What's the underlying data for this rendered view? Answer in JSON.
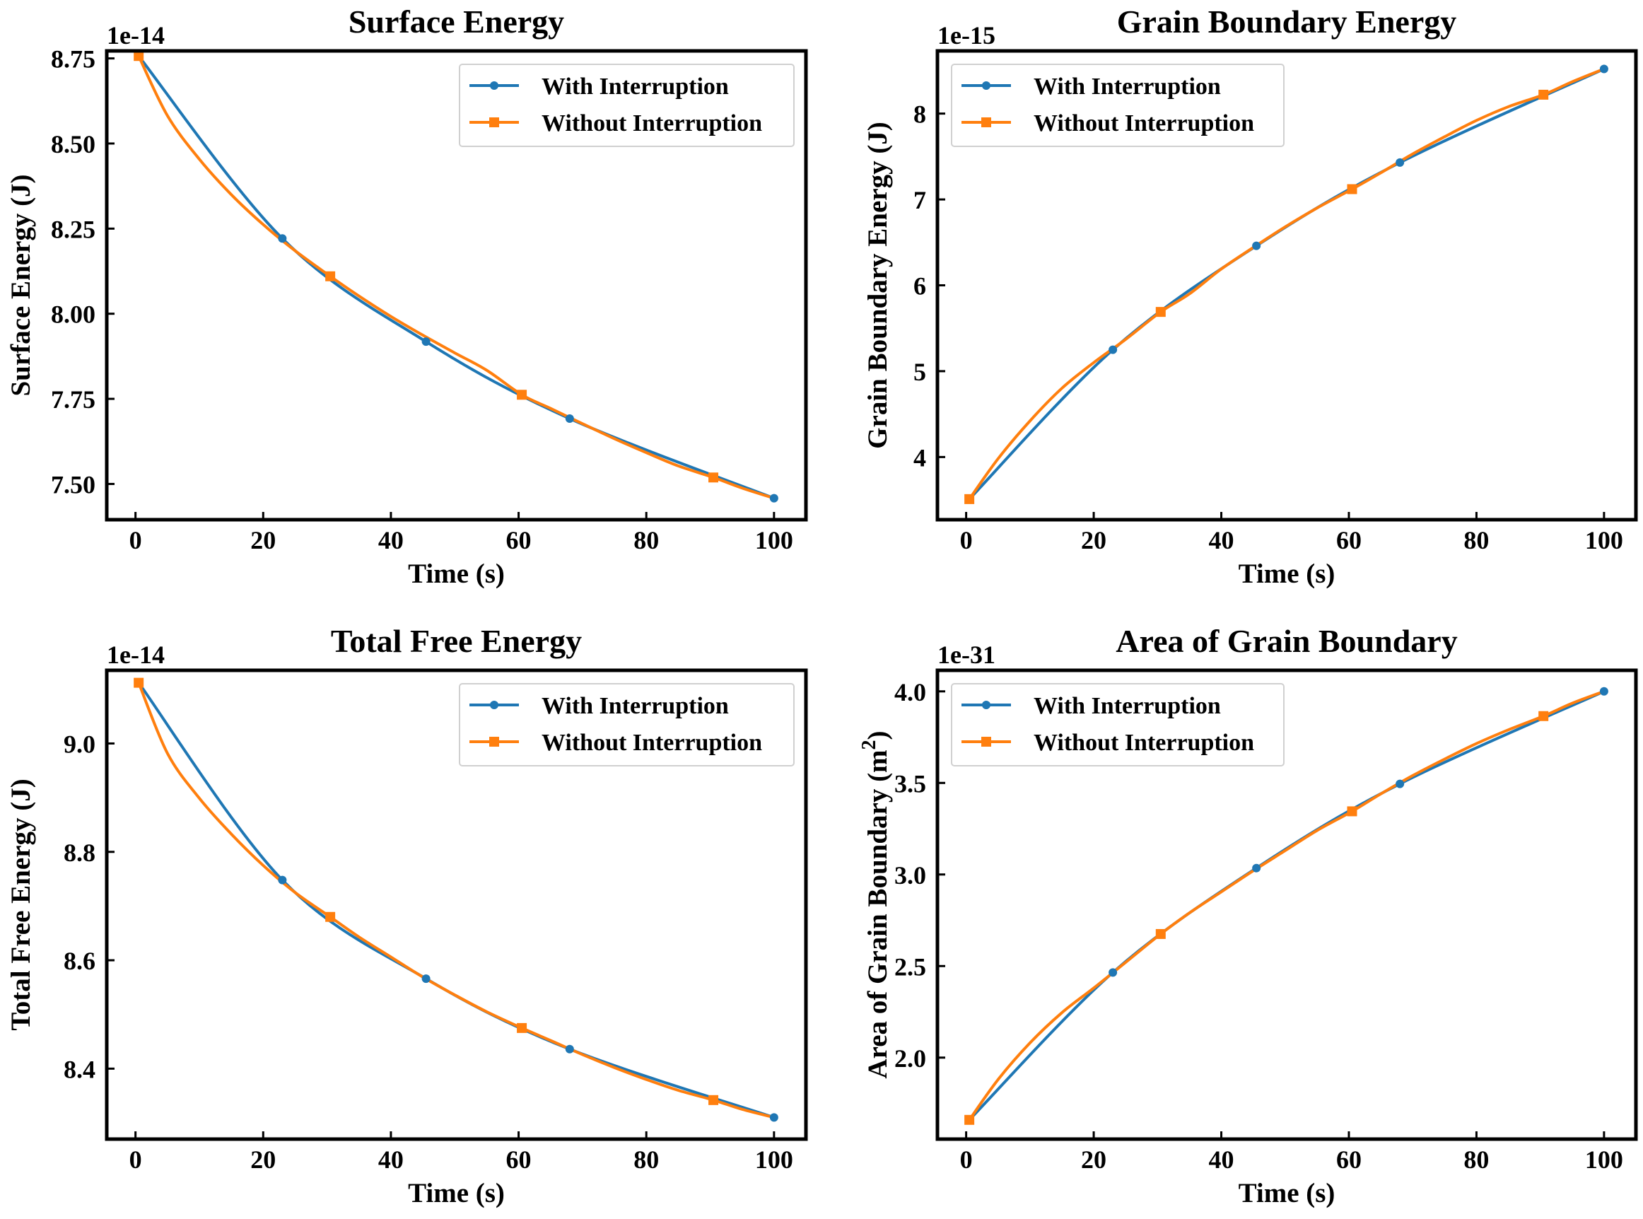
{
  "colors": {
    "with": "#1f77b4",
    "without": "#ff7f0e"
  },
  "chart_data": [
    {
      "type": "line",
      "title": "Surface Energy",
      "xlabel": "Time (s)",
      "ylabel": "Surface Energy (J)",
      "offset_label": "1e-14",
      "scale": 1e-14,
      "xlim": [
        -4.5,
        105
      ],
      "ylim": [
        7.395,
        8.772
      ],
      "xticks": [
        0,
        20,
        40,
        60,
        80,
        100
      ],
      "xtick_labels": [
        "0",
        "20",
        "40",
        "60",
        "80",
        "100"
      ],
      "yticks": [
        7.5,
        7.75,
        8.0,
        8.25,
        8.5,
        8.75
      ],
      "ytick_labels": [
        "7.50",
        "7.75",
        "8.00",
        "8.25",
        "8.50",
        "8.75"
      ],
      "legend": "top-right",
      "series": [
        {
          "name": "With Interruption",
          "marker": "circle",
          "x": [
            0.5,
            23,
            45.5,
            68,
            100
          ],
          "y": [
            8.757,
            8.221,
            7.918,
            7.692,
            7.458
          ]
        },
        {
          "name": "Without Interruption",
          "marker": "square",
          "x": [
            0.5,
            5,
            10,
            15,
            20,
            25,
            30.5,
            35,
            40,
            45,
            50,
            55,
            60.5,
            65,
            70,
            75,
            80,
            85,
            90.5,
            95,
            100
          ],
          "y": [
            8.757,
            8.582,
            8.454,
            8.35,
            8.262,
            8.185,
            8.11,
            8.052,
            7.992,
            7.937,
            7.885,
            7.834,
            7.762,
            7.722,
            7.677,
            7.633,
            7.592,
            7.553,
            7.519,
            7.488,
            7.458
          ]
        }
      ]
    },
    {
      "type": "line",
      "title": "Grain Boundary Energy",
      "xlabel": "Time (s)",
      "ylabel": "Grain Boundary Energy (J)",
      "offset_label": "1e-15",
      "scale": 1e-15,
      "xlim": [
        -4.5,
        105
      ],
      "ylim": [
        3.27,
        8.73
      ],
      "xticks": [
        0,
        20,
        40,
        60,
        80,
        100
      ],
      "xtick_labels": [
        "0",
        "20",
        "40",
        "60",
        "80",
        "100"
      ],
      "yticks": [
        4,
        5,
        6,
        7,
        8
      ],
      "ytick_labels": [
        "4",
        "5",
        "6",
        "7",
        "8"
      ],
      "legend": "top-left",
      "series": [
        {
          "name": "With Interruption",
          "marker": "circle",
          "x": [
            0.5,
            23,
            45.5,
            68,
            100
          ],
          "y": [
            3.51,
            5.25,
            6.46,
            7.43,
            8.52
          ]
        },
        {
          "name": "Without Interruption",
          "marker": "square",
          "x": [
            0.5,
            5,
            10,
            15,
            20,
            25,
            30.5,
            35,
            40,
            45,
            50,
            55,
            60.5,
            65,
            70,
            75,
            80,
            85,
            90.5,
            95,
            100
          ],
          "y": [
            3.51,
            3.98,
            4.42,
            4.8,
            5.1,
            5.37,
            5.69,
            5.9,
            6.19,
            6.44,
            6.68,
            6.9,
            7.12,
            7.31,
            7.53,
            7.73,
            7.92,
            8.08,
            8.22,
            8.37,
            8.52
          ]
        }
      ]
    },
    {
      "type": "line",
      "title": "Total Free Energy",
      "xlabel": "Time (s)",
      "ylabel": "Total Free Energy (J)",
      "offset_label": "1e-14",
      "scale": 1e-14,
      "xlim": [
        -4.5,
        105
      ],
      "ylim": [
        8.27,
        9.135
      ],
      "xticks": [
        0,
        20,
        40,
        60,
        80,
        100
      ],
      "xtick_labels": [
        "0",
        "20",
        "40",
        "60",
        "80",
        "100"
      ],
      "yticks": [
        8.4,
        8.6,
        8.8,
        9.0
      ],
      "ytick_labels": [
        "8.4",
        "8.6",
        "8.8",
        "9.0"
      ],
      "legend": "top-right",
      "series": [
        {
          "name": "With Interruption",
          "marker": "circle",
          "x": [
            0.5,
            23,
            45.5,
            68,
            100
          ],
          "y": [
            9.112,
            8.748,
            8.566,
            8.436,
            8.31
          ]
        },
        {
          "name": "Without Interruption",
          "marker": "square",
          "x": [
            0.5,
            5,
            10,
            15,
            20,
            25,
            30.5,
            35,
            40,
            45,
            50,
            55,
            60.5,
            65,
            70,
            75,
            80,
            85,
            90.5,
            95,
            100
          ],
          "y": [
            9.112,
            8.982,
            8.899,
            8.833,
            8.775,
            8.725,
            8.68,
            8.643,
            8.606,
            8.569,
            8.536,
            8.505,
            8.475,
            8.452,
            8.426,
            8.402,
            8.38,
            8.36,
            8.342,
            8.325,
            8.31
          ]
        }
      ]
    },
    {
      "type": "line",
      "title": "Area of Grain Boundary",
      "xlabel": "Time (s)",
      "ylabel": "Area of Grain Boundary (m",
      "ylabel_sup": "2",
      "ylabel_end": ")",
      "offset_label": "1e-31",
      "scale": 1e-31,
      "xlim": [
        -4.5,
        105
      ],
      "ylim": [
        1.555,
        4.115
      ],
      "xticks": [
        0,
        20,
        40,
        60,
        80,
        100
      ],
      "xtick_labels": [
        "0",
        "20",
        "40",
        "60",
        "80",
        "100"
      ],
      "yticks": [
        2.0,
        2.5,
        3.0,
        3.5,
        4.0
      ],
      "ytick_labels": [
        "2.0",
        "2.5",
        "3.0",
        "3.5",
        "4.0"
      ],
      "legend": "top-left",
      "series": [
        {
          "name": "With Interruption",
          "marker": "circle",
          "x": [
            0.5,
            23,
            45.5,
            68,
            100
          ],
          "y": [
            1.66,
            2.465,
            3.035,
            3.495,
            4.0
          ]
        },
        {
          "name": "Without Interruption",
          "marker": "square",
          "x": [
            0.5,
            5,
            10,
            15,
            20,
            25,
            30.5,
            35,
            40,
            45,
            50,
            55,
            60.5,
            65,
            70,
            75,
            80,
            85,
            90.5,
            95,
            100
          ],
          "y": [
            1.66,
            1.88,
            2.08,
            2.245,
            2.38,
            2.52,
            2.675,
            2.79,
            2.905,
            3.02,
            3.13,
            3.24,
            3.345,
            3.44,
            3.54,
            3.63,
            3.715,
            3.79,
            3.865,
            3.935,
            4.0
          ]
        }
      ]
    }
  ]
}
